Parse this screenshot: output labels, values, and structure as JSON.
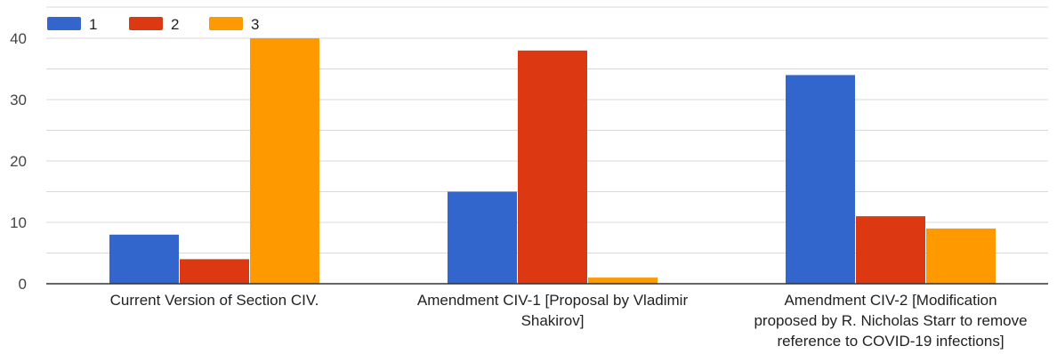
{
  "chart_data": {
    "type": "bar",
    "title": "",
    "xlabel": "",
    "ylabel": "",
    "categories": [
      [
        "Current Version of Section CIV."
      ],
      [
        "Amendment CIV-1 [Proposal by Vladimir",
        "Shakirov]"
      ],
      [
        "Amendment CIV-2 [Modification",
        "proposed by R. Nicholas Starr to remove",
        "reference to COVID-19 infections]"
      ]
    ],
    "series": [
      {
        "name": "1",
        "color": "#3366cc",
        "values": [
          8,
          15,
          34
        ]
      },
      {
        "name": "2",
        "color": "#dc3912",
        "values": [
          4,
          38,
          11
        ]
      },
      {
        "name": "3",
        "color": "#ff9900",
        "values": [
          40,
          1,
          9
        ]
      }
    ],
    "ylim": [
      0,
      40
    ],
    "yticks": [
      0,
      10,
      20,
      30,
      40
    ],
    "grid": true,
    "legend_position": "top-left"
  }
}
